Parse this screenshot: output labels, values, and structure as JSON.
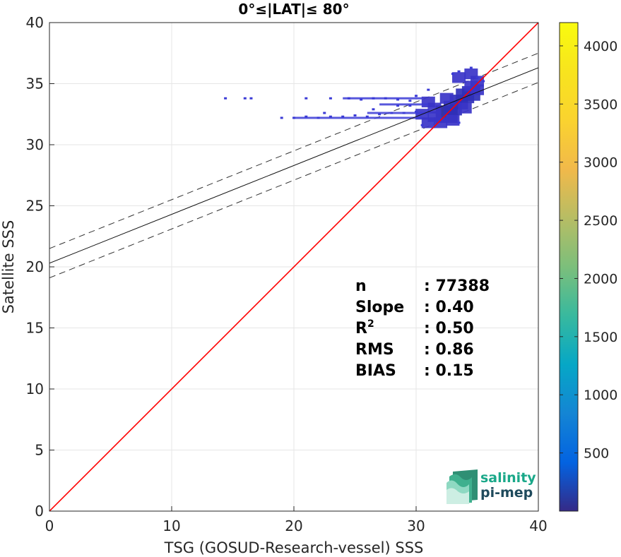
{
  "chart_data": {
    "type": "heatmap",
    "title": "0°≤|LAT|≤ 80°",
    "xlabel": "TSG (GOSUD-Research-vessel) SSS",
    "ylabel": "Satellite SSS",
    "xlim": [
      0,
      40
    ],
    "ylim": [
      0,
      40
    ],
    "xticks": [
      "0",
      "10",
      "20",
      "30",
      "40"
    ],
    "yticks": [
      "0",
      "5",
      "10",
      "15",
      "20",
      "25",
      "30",
      "35",
      "40"
    ],
    "grid": true,
    "colorbar": {
      "range": [
        0,
        4200
      ],
      "ticks": [
        "500",
        "1000",
        "1500",
        "2000",
        "2500",
        "3000",
        "3500",
        "4000"
      ],
      "colormap": "parula"
    },
    "identity_line": {
      "slope": 1,
      "intercept": 0,
      "color": "#ff0000"
    },
    "fit_line": {
      "slope": 0.4,
      "intercept": 20.3
    },
    "fit_band_offset": 1.2,
    "density_cells": [
      [
        32.5,
        32.5,
        3
      ],
      [
        33,
        33,
        2
      ],
      [
        33.5,
        33.5,
        2
      ],
      [
        34,
        34,
        2
      ],
      [
        34.5,
        34.2,
        2
      ],
      [
        31.5,
        32.3,
        1
      ],
      [
        31.5,
        33,
        1
      ],
      [
        32,
        31.8,
        1
      ],
      [
        32.5,
        33.8,
        1
      ],
      [
        33,
        32,
        1
      ],
      [
        34,
        33,
        1
      ],
      [
        34.5,
        34.8,
        1
      ],
      [
        35,
        34.5,
        1
      ],
      [
        35,
        35.2,
        1
      ],
      [
        31,
        31.8,
        1
      ],
      [
        30.5,
        32.5,
        1
      ],
      [
        31,
        33.5,
        1
      ],
      [
        33.5,
        35.5,
        1
      ],
      [
        34.5,
        35.8,
        1
      ]
    ],
    "scatter_points": [
      [
        14.4,
        33.8
      ],
      [
        16,
        33.8
      ],
      [
        16.5,
        33.8
      ],
      [
        21,
        33.8
      ],
      [
        23,
        33.8
      ],
      [
        24.5,
        33.8
      ],
      [
        25.5,
        33.7
      ],
      [
        26.5,
        33.8
      ],
      [
        27.5,
        33.8
      ],
      [
        28.5,
        33.7
      ],
      [
        29.5,
        33.6
      ],
      [
        19,
        32.2
      ],
      [
        20,
        32.2
      ],
      [
        21,
        32.3
      ],
      [
        22,
        32.2
      ],
      [
        23,
        32.3
      ],
      [
        24,
        32.3
      ],
      [
        25,
        32.4
      ],
      [
        26,
        32.3
      ],
      [
        27,
        32.5
      ],
      [
        28,
        32.6
      ],
      [
        29,
        32.6
      ],
      [
        30,
        32.7
      ],
      [
        22.5,
        32.6
      ],
      [
        26.5,
        32.9
      ],
      [
        28.5,
        33.2
      ],
      [
        29.5,
        33.2
      ],
      [
        30,
        34
      ],
      [
        31,
        34.5
      ],
      [
        33,
        35.8
      ],
      [
        33.5,
        36
      ],
      [
        34.5,
        36.3
      ],
      [
        35,
        35.5
      ],
      [
        35.5,
        35.2
      ],
      [
        30.5,
        31.6
      ],
      [
        33.5,
        31.8
      ]
    ],
    "stats": [
      {
        "label": "n",
        "sup": "",
        "value": ": 77388"
      },
      {
        "label": "Slope",
        "sup": "",
        "value": ": 0.40"
      },
      {
        "label": "R",
        "sup": "2",
        "value": ": 0.50"
      },
      {
        "label": "RMS",
        "sup": "",
        "value": ": 0.86"
      },
      {
        "label": "BIAS",
        "sup": "",
        "value": ": 0.15"
      }
    ]
  },
  "logo": {
    "line1": "salinity",
    "line2": "pi-mep"
  }
}
